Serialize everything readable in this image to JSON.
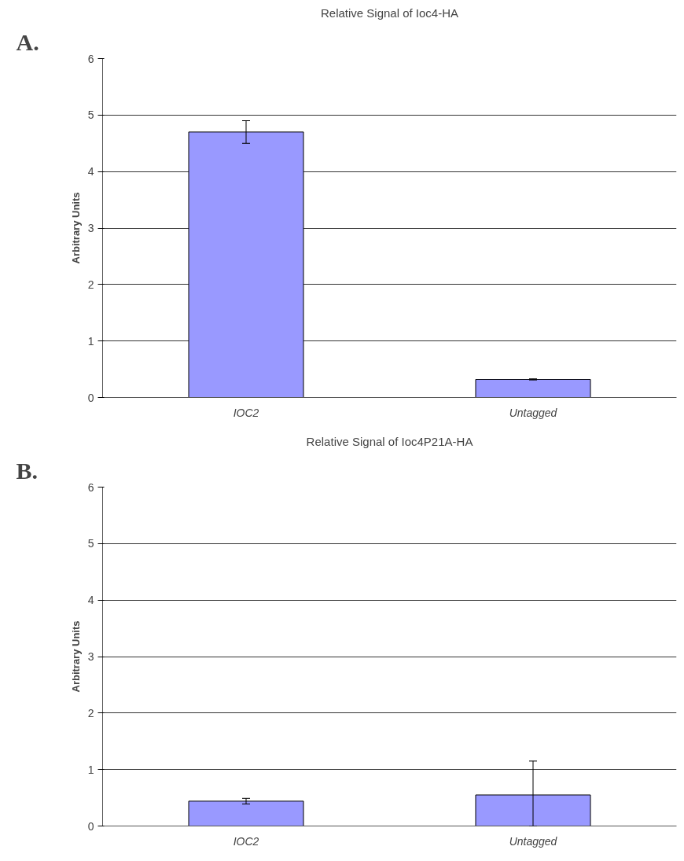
{
  "chart_data": [
    {
      "type": "bar",
      "title": "Relative Signal of Ioc4-HA",
      "ylabel": "Arbitrary Units",
      "categories": [
        "IOC2",
        "Untagged"
      ],
      "values": [
        4.7,
        0.32
      ],
      "errors": [
        0.2,
        0.01
      ],
      "color": "#9999ff",
      "ylim": [
        0,
        6
      ],
      "yticks": [
        0,
        1,
        2,
        3,
        4,
        5,
        6
      ],
      "grid": "y",
      "annotations": [
        "A."
      ]
    },
    {
      "type": "bar",
      "title": "Relative Signal of Ioc4P21A-HA",
      "ylabel": "Arbitrary Units",
      "categories": [
        "IOC2",
        "Untagged"
      ],
      "values": [
        0.44,
        0.55
      ],
      "errors": [
        0.05,
        [
          0,
          1.15
        ]
      ],
      "color": "#9999ff",
      "ylim": [
        0,
        6
      ],
      "yticks": [
        0,
        1,
        2,
        3,
        4,
        5,
        6
      ],
      "grid": "y",
      "annotations": [
        "B."
      ]
    }
  ]
}
